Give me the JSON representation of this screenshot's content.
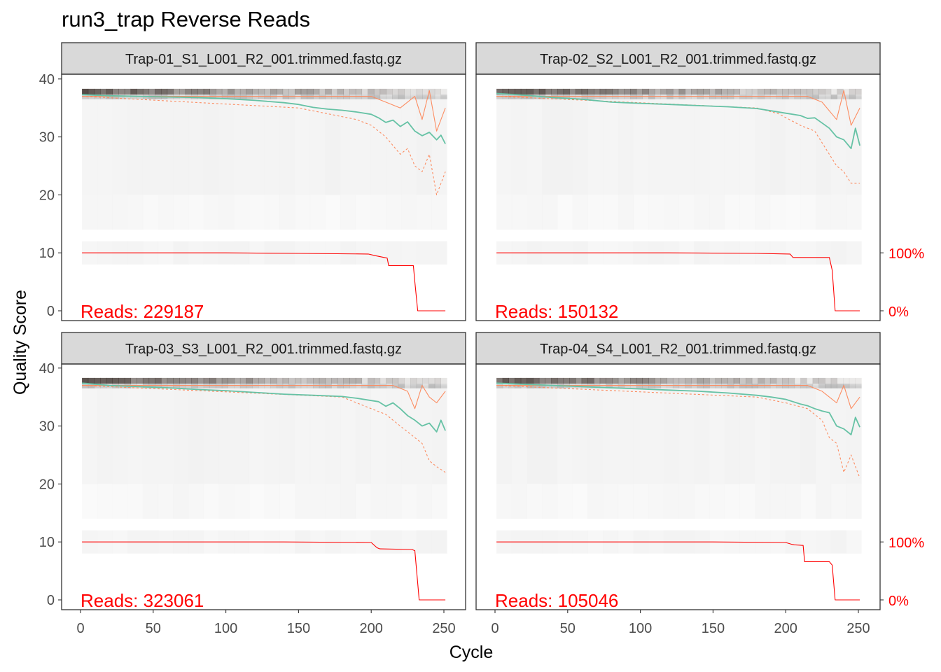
{
  "chart_data": {
    "type": "line",
    "title": "run3_trap Reverse Reads",
    "xlabel": "Cycle",
    "ylabel": "Quality Score",
    "xlim": [
      0,
      251
    ],
    "ylim": [
      0,
      40
    ],
    "x_ticks": [
      "0",
      "50",
      "100",
      "150",
      "200",
      "250"
    ],
    "y_ticks": [
      "0",
      "10",
      "20",
      "30",
      "40"
    ],
    "right_axis_labels": [
      "100%",
      "0%"
    ],
    "grid": false,
    "colors": {
      "mean": "#66c2a5",
      "quantiles": "#fc8d62",
      "cumulative": "#ff0000",
      "heatmap_base": "#f2f2f2",
      "strip_fill": "#d9d9d9"
    },
    "panels": [
      {
        "file": "Trap-01_S1_L001_R2_001.trimmed.fastq.gz",
        "reads_label": "Reads:  229187",
        "mean_quality": {
          "x": [
            1,
            20,
            40,
            60,
            80,
            100,
            120,
            140,
            150,
            160,
            170,
            180,
            190,
            200,
            205,
            210,
            215,
            220,
            225,
            230,
            235,
            240,
            245,
            248,
            251
          ],
          "y": [
            37.3,
            37.1,
            37.0,
            36.9,
            36.8,
            36.6,
            36.3,
            35.9,
            35.6,
            35.1,
            34.8,
            34.6,
            34.3,
            33.9,
            33.3,
            32.5,
            32.9,
            31.8,
            32.6,
            31.0,
            30.2,
            30.8,
            29.5,
            30.3,
            28.8
          ]
        },
        "upper_quartile": {
          "x": [
            1,
            150,
            200,
            210,
            220,
            230,
            235,
            240,
            245,
            251
          ],
          "y": [
            37,
            37,
            37,
            36,
            35,
            37,
            33,
            38,
            31,
            35
          ]
        },
        "lower_quartile": {
          "x": [
            1,
            150,
            170,
            190,
            200,
            210,
            220,
            225,
            230,
            235,
            240,
            245,
            251
          ],
          "y": [
            37,
            35,
            34,
            33,
            32,
            30,
            27,
            28,
            25,
            24,
            27,
            20,
            24
          ]
        },
        "cumulative_reads": {
          "x": [
            1,
            100,
            150,
            198,
            203,
            211,
            212,
            229,
            230,
            232,
            251
          ],
          "y": [
            10.0,
            10.0,
            9.9,
            9.8,
            9.5,
            9.1,
            7.8,
            7.8,
            5.0,
            0.0,
            0.0
          ]
        }
      },
      {
        "file": "Trap-02_S2_L001_R2_001.trimmed.fastq.gz",
        "reads_label": "Reads:  150132",
        "mean_quality": {
          "x": [
            1,
            20,
            40,
            60,
            80,
            100,
            120,
            140,
            160,
            180,
            190,
            200,
            210,
            215,
            220,
            225,
            230,
            235,
            240,
            245,
            248,
            251
          ],
          "y": [
            37.5,
            37.2,
            36.8,
            36.5,
            36.0,
            35.8,
            35.6,
            35.4,
            35.2,
            34.9,
            34.5,
            34.1,
            33.7,
            33.2,
            33.3,
            32.4,
            31.5,
            30.0,
            29.5,
            28.0,
            31.5,
            28.5
          ]
        },
        "upper_quartile": {
          "x": [
            1,
            180,
            200,
            215,
            225,
            235,
            240,
            245,
            251
          ],
          "y": [
            37,
            37,
            37,
            37,
            36,
            33,
            38,
            32,
            35
          ]
        },
        "lower_quartile": {
          "x": [
            1,
            180,
            195,
            210,
            220,
            225,
            230,
            235,
            240,
            245,
            251
          ],
          "y": [
            37,
            35,
            34,
            32,
            31,
            29,
            27,
            25,
            24,
            22,
            22
          ]
        },
        "cumulative_reads": {
          "x": [
            1,
            120,
            180,
            203,
            205,
            230,
            232,
            234,
            251
          ],
          "y": [
            10.0,
            10.0,
            9.9,
            9.8,
            9.2,
            9.2,
            7.0,
            0.0,
            0.0
          ]
        }
      },
      {
        "file": "Trap-03_S3_L001_R2_001.trimmed.fastq.gz",
        "reads_label": "Reads:  323061",
        "mean_quality": {
          "x": [
            1,
            20,
            40,
            60,
            80,
            100,
            120,
            140,
            160,
            180,
            190,
            200,
            205,
            210,
            215,
            220,
            225,
            230,
            235,
            240,
            245,
            248,
            251
          ],
          "y": [
            37.4,
            37.0,
            36.8,
            36.6,
            36.3,
            36.1,
            35.8,
            35.5,
            35.3,
            35.1,
            34.8,
            34.4,
            34.2,
            33.4,
            34.0,
            33.0,
            31.8,
            31.0,
            30.0,
            30.5,
            29.0,
            31.0,
            29.2
          ]
        },
        "upper_quartile": {
          "x": [
            1,
            200,
            215,
            225,
            230,
            235,
            240,
            245,
            251
          ],
          "y": [
            37,
            37,
            37,
            36,
            33,
            37,
            35,
            34,
            36
          ]
        },
        "lower_quartile": {
          "x": [
            1,
            180,
            200,
            210,
            220,
            225,
            230,
            235,
            240,
            245,
            251
          ],
          "y": [
            37,
            35,
            33,
            32,
            30,
            29,
            28,
            27,
            24,
            23,
            22
          ]
        },
        "cumulative_reads": {
          "x": [
            1,
            140,
            200,
            204,
            206,
            228,
            230,
            233,
            251
          ],
          "y": [
            10.0,
            10.0,
            9.9,
            9.0,
            8.8,
            8.7,
            8.5,
            0.0,
            0.0
          ]
        }
      },
      {
        "file": "Trap-04_S4_L001_R2_001.trimmed.fastq.gz",
        "reads_label": "Reads:  105046",
        "mean_quality": {
          "x": [
            1,
            20,
            40,
            60,
            80,
            100,
            120,
            140,
            160,
            180,
            190,
            200,
            205,
            210,
            215,
            220,
            225,
            230,
            235,
            240,
            245,
            248,
            251
          ],
          "y": [
            37.4,
            37.2,
            37.0,
            36.8,
            36.6,
            36.4,
            36.2,
            36.0,
            35.7,
            35.3,
            35.0,
            34.6,
            34.2,
            33.8,
            33.5,
            33.0,
            32.6,
            32.3,
            30.0,
            29.5,
            28.5,
            31.5,
            29.8
          ]
        },
        "upper_quartile": {
          "x": [
            1,
            200,
            215,
            225,
            230,
            235,
            240,
            245,
            251
          ],
          "y": [
            37,
            37,
            37,
            36,
            35,
            34,
            37,
            33,
            35
          ]
        },
        "lower_quartile": {
          "x": [
            1,
            180,
            200,
            215,
            225,
            230,
            235,
            240,
            245,
            251
          ],
          "y": [
            37,
            35,
            34,
            33,
            31,
            28,
            27,
            22,
            25,
            21
          ]
        },
        "cumulative_reads": {
          "x": [
            1,
            150,
            200,
            204,
            206,
            212,
            213,
            230,
            232,
            234,
            251
          ],
          "y": [
            10.0,
            10.0,
            9.9,
            9.6,
            9.5,
            9.4,
            6.6,
            6.6,
            6.0,
            0.0,
            0.0
          ]
        }
      }
    ]
  }
}
